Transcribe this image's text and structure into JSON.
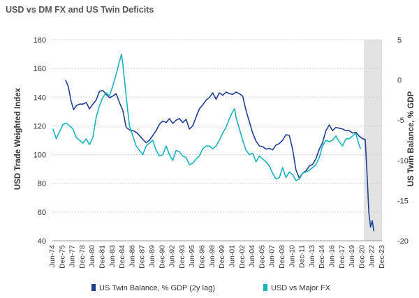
{
  "chart_data": {
    "type": "line",
    "title": "USD vs DM FX and US Twin Deficits",
    "ylabel_left": "USD Trade Weighted Index",
    "ylabel_right": "US Twin Balance, % GDP",
    "ylim_left": [
      40,
      180
    ],
    "yticks_left": [
      "180",
      "160",
      "140",
      "120",
      "100",
      "80",
      "60",
      "40"
    ],
    "ylim_right": [
      -20,
      5
    ],
    "yticks_right": [
      "5",
      "0",
      "-5",
      "-10",
      "-15",
      "-20"
    ],
    "xlim": [
      1974.42,
      2023.92
    ],
    "xticks": [
      "Jun-74",
      "Dec-75",
      "Jun-77",
      "Dec-78",
      "Jun-80",
      "Dec-81",
      "Jun-83",
      "Dec-84",
      "Jun-86",
      "Dec-87",
      "Jun-89",
      "Dec-90",
      "Jun-92",
      "Dec-93",
      "Jun-95",
      "Dec-96",
      "Jun-98",
      "Dec-99",
      "Jun-01",
      "Dec-02",
      "Jun-04",
      "Dec-05",
      "Jun-07",
      "Dec-08",
      "Jun-10",
      "Dec-11",
      "Jun-13",
      "Dec-14",
      "Jun-16",
      "Dec-17",
      "Jun-19",
      "Dec-20",
      "Jun-22",
      "Dec-23"
    ],
    "shaded_region": {
      "from": 2021.2,
      "to": 2023.92,
      "color": "#e3e3e3"
    },
    "grid": "horizontal dashed",
    "legend_position": "bottom",
    "series": [
      {
        "name": "US Twin Balance, % GDP (2y lag)",
        "axis": "right",
        "color": "#1f3f8f",
        "points": [
          [
            1976.4,
            0.0
          ],
          [
            1976.8,
            -0.8
          ],
          [
            1977.2,
            -2.5
          ],
          [
            1977.6,
            -3.7
          ],
          [
            1978.0,
            -3.2
          ],
          [
            1978.5,
            -3.0
          ],
          [
            1979.0,
            -3.0
          ],
          [
            1979.5,
            -2.8
          ],
          [
            1980.0,
            -3.6
          ],
          [
            1980.5,
            -3.0
          ],
          [
            1981.0,
            -2.5
          ],
          [
            1981.5,
            -1.4
          ],
          [
            1982.0,
            -1.3
          ],
          [
            1982.5,
            -1.8
          ],
          [
            1983.0,
            -2.2
          ],
          [
            1983.5,
            -2.0
          ],
          [
            1984.0,
            -1.7
          ],
          [
            1984.5,
            -2.8
          ],
          [
            1985.0,
            -3.8
          ],
          [
            1985.5,
            -5.9
          ],
          [
            1986.0,
            -6.2
          ],
          [
            1986.5,
            -6.3
          ],
          [
            1987.0,
            -6.5
          ],
          [
            1987.5,
            -6.9
          ],
          [
            1988.0,
            -7.4
          ],
          [
            1988.5,
            -7.8
          ],
          [
            1989.0,
            -7.5
          ],
          [
            1989.5,
            -6.9
          ],
          [
            1990.0,
            -6.3
          ],
          [
            1990.5,
            -5.5
          ],
          [
            1991.0,
            -5.1
          ],
          [
            1991.5,
            -5.3
          ],
          [
            1992.0,
            -4.8
          ],
          [
            1992.5,
            -5.4
          ],
          [
            1993.0,
            -5.0
          ],
          [
            1993.5,
            -4.8
          ],
          [
            1994.0,
            -5.3
          ],
          [
            1994.5,
            -4.9
          ],
          [
            1995.0,
            -6.1
          ],
          [
            1995.5,
            -5.7
          ],
          [
            1996.0,
            -4.6
          ],
          [
            1996.5,
            -3.6
          ],
          [
            1997.0,
            -3.1
          ],
          [
            1997.5,
            -2.5
          ],
          [
            1998.0,
            -2.2
          ],
          [
            1998.5,
            -1.6
          ],
          [
            1999.0,
            -2.4
          ],
          [
            1999.5,
            -1.6
          ],
          [
            2000.0,
            -1.9
          ],
          [
            2000.5,
            -1.5
          ],
          [
            2001.0,
            -1.7
          ],
          [
            2001.5,
            -1.8
          ],
          [
            2002.0,
            -1.5
          ],
          [
            2002.5,
            -1.7
          ],
          [
            2003.0,
            -2.0
          ],
          [
            2003.5,
            -3.8
          ],
          [
            2004.0,
            -5.2
          ],
          [
            2004.5,
            -6.6
          ],
          [
            2005.0,
            -7.6
          ],
          [
            2005.5,
            -8.2
          ],
          [
            2006.0,
            -8.3
          ],
          [
            2006.5,
            -8.6
          ],
          [
            2007.0,
            -8.5
          ],
          [
            2007.5,
            -8.7
          ],
          [
            2008.0,
            -8.1
          ],
          [
            2008.5,
            -7.9
          ],
          [
            2009.0,
            -7.5
          ],
          [
            2009.5,
            -6.8
          ],
          [
            2010.0,
            -6.9
          ],
          [
            2010.5,
            -8.6
          ],
          [
            2011.0,
            -11.2
          ],
          [
            2011.5,
            -12.2
          ],
          [
            2012.0,
            -11.6
          ],
          [
            2012.5,
            -11.3
          ],
          [
            2013.0,
            -10.7
          ],
          [
            2013.5,
            -10.5
          ],
          [
            2014.0,
            -9.8
          ],
          [
            2014.5,
            -8.6
          ],
          [
            2015.0,
            -7.8
          ],
          [
            2015.5,
            -6.3
          ],
          [
            2016.0,
            -5.6
          ],
          [
            2016.5,
            -6.3
          ],
          [
            2017.0,
            -5.9
          ],
          [
            2017.5,
            -6.0
          ],
          [
            2018.0,
            -6.1
          ],
          [
            2018.5,
            -6.3
          ],
          [
            2019.0,
            -6.3
          ],
          [
            2019.5,
            -6.6
          ],
          [
            2020.0,
            -6.5
          ],
          [
            2020.5,
            -7.0
          ],
          [
            2021.0,
            -7.3
          ],
          [
            2021.4,
            -7.4
          ],
          [
            2021.7,
            -12.0
          ],
          [
            2021.95,
            -16.5
          ],
          [
            2022.2,
            -18.3
          ],
          [
            2022.45,
            -17.5
          ],
          [
            2022.7,
            -18.8
          ]
        ]
      },
      {
        "name": "USD vs Major FX",
        "axis": "left",
        "color": "#19b3bd",
        "points": [
          [
            1974.5,
            118
          ],
          [
            1975.0,
            111
          ],
          [
            1975.5,
            116
          ],
          [
            1976.0,
            121
          ],
          [
            1976.5,
            122
          ],
          [
            1977.0,
            120
          ],
          [
            1977.5,
            118
          ],
          [
            1978.0,
            112
          ],
          [
            1978.5,
            110
          ],
          [
            1979.0,
            108
          ],
          [
            1979.5,
            111
          ],
          [
            1980.0,
            107
          ],
          [
            1980.5,
            112
          ],
          [
            1981.0,
            126
          ],
          [
            1981.5,
            134
          ],
          [
            1982.0,
            140
          ],
          [
            1982.5,
            143
          ],
          [
            1983.0,
            141
          ],
          [
            1983.5,
            148
          ],
          [
            1984.0,
            156
          ],
          [
            1984.5,
            165
          ],
          [
            1984.8,
            170
          ],
          [
            1985.0,
            163
          ],
          [
            1985.3,
            150
          ],
          [
            1985.7,
            132
          ],
          [
            1986.0,
            120
          ],
          [
            1986.5,
            113
          ],
          [
            1987.0,
            106
          ],
          [
            1987.5,
            103
          ],
          [
            1988.0,
            100
          ],
          [
            1988.5,
            106
          ],
          [
            1989.0,
            108
          ],
          [
            1989.5,
            110
          ],
          [
            1990.0,
            103
          ],
          [
            1990.5,
            99
          ],
          [
            1991.0,
            100
          ],
          [
            1991.5,
            106
          ],
          [
            1992.0,
            100
          ],
          [
            1992.5,
            96
          ],
          [
            1993.0,
            103
          ],
          [
            1993.5,
            102
          ],
          [
            1994.0,
            99
          ],
          [
            1994.5,
            98
          ],
          [
            1995.0,
            93
          ],
          [
            1995.5,
            94
          ],
          [
            1996.0,
            97
          ],
          [
            1996.5,
            99
          ],
          [
            1997.0,
            104
          ],
          [
            1997.5,
            106
          ],
          [
            1998.0,
            106
          ],
          [
            1998.5,
            104
          ],
          [
            1999.0,
            106
          ],
          [
            1999.5,
            110
          ],
          [
            2000.0,
            115
          ],
          [
            2000.5,
            119
          ],
          [
            2001.0,
            125
          ],
          [
            2001.5,
            130
          ],
          [
            2001.8,
            132
          ],
          [
            2002.0,
            126
          ],
          [
            2002.5,
            118
          ],
          [
            2003.0,
            110
          ],
          [
            2003.5,
            103
          ],
          [
            2004.0,
            100
          ],
          [
            2004.5,
            101
          ],
          [
            2005.0,
            95
          ],
          [
            2005.5,
            99
          ],
          [
            2006.0,
            97
          ],
          [
            2006.5,
            95
          ],
          [
            2007.0,
            92
          ],
          [
            2007.5,
            87
          ],
          [
            2008.0,
            83
          ],
          [
            2008.5,
            84
          ],
          [
            2009.0,
            91
          ],
          [
            2009.5,
            84
          ],
          [
            2010.0,
            88
          ],
          [
            2010.5,
            86
          ],
          [
            2011.0,
            82
          ],
          [
            2011.5,
            83
          ],
          [
            2012.0,
            87
          ],
          [
            2012.5,
            88
          ],
          [
            2013.0,
            89
          ],
          [
            2013.5,
            91
          ],
          [
            2014.0,
            93
          ],
          [
            2014.5,
            98
          ],
          [
            2015.0,
            106
          ],
          [
            2015.5,
            110
          ],
          [
            2016.0,
            109
          ],
          [
            2016.5,
            110
          ],
          [
            2017.0,
            113
          ],
          [
            2017.5,
            109
          ],
          [
            2018.0,
            106
          ],
          [
            2018.5,
            111
          ],
          [
            2019.0,
            111
          ],
          [
            2019.5,
            113
          ],
          [
            2020.0,
            115
          ],
          [
            2020.4,
            108
          ],
          [
            2020.7,
            104
          ]
        ]
      }
    ]
  }
}
